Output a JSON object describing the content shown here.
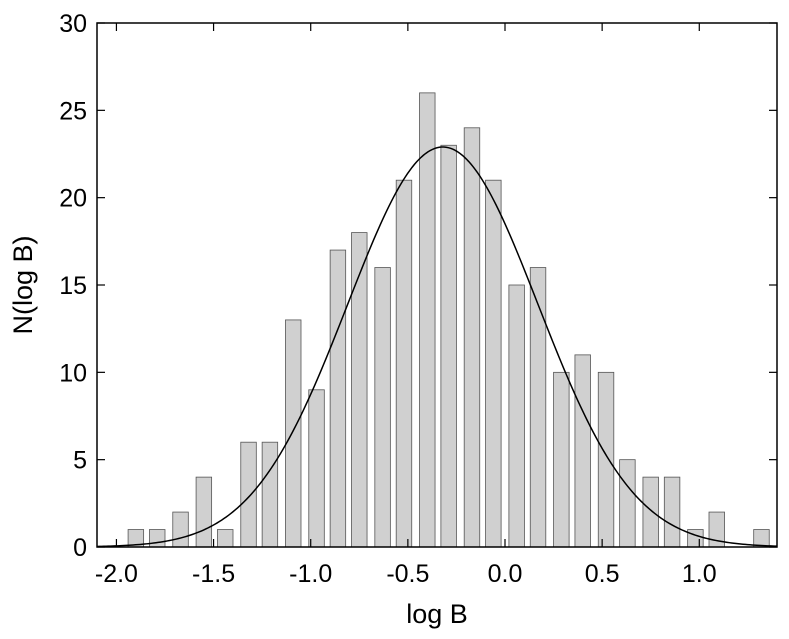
{
  "chart_data": {
    "type": "bar",
    "xlabel": "log B",
    "ylabel": "N(log B)",
    "xlim": [
      -2.1,
      1.4
    ],
    "ylim": [
      0,
      30
    ],
    "grid": false,
    "x_ticks": [
      -2.0,
      -1.5,
      -1.0,
      -0.5,
      0.0,
      0.5,
      1.0
    ],
    "x_tick_labels": [
      "-2.0",
      "-1.5",
      "-1.0",
      "-0.5",
      "0.0",
      "0.5",
      "1.0"
    ],
    "y_ticks": [
      0,
      5,
      10,
      15,
      20,
      25,
      30
    ],
    "y_tick_labels": [
      "0",
      "5",
      "10",
      "15",
      "20",
      "25",
      "30"
    ],
    "bin_width": 0.08,
    "bar_color": "#d0d0d0",
    "bars": [
      {
        "x": -1.9,
        "count": 1
      },
      {
        "x": -1.79,
        "count": 1
      },
      {
        "x": -1.67,
        "count": 2
      },
      {
        "x": -1.55,
        "count": 4
      },
      {
        "x": -1.44,
        "count": 1
      },
      {
        "x": -1.32,
        "count": 6
      },
      {
        "x": -1.21,
        "count": 6
      },
      {
        "x": -1.09,
        "count": 13
      },
      {
        "x": -0.97,
        "count": 9
      },
      {
        "x": -0.86,
        "count": 17
      },
      {
        "x": -0.75,
        "count": 18
      },
      {
        "x": -0.63,
        "count": 16
      },
      {
        "x": -0.52,
        "count": 21
      },
      {
        "x": -0.4,
        "count": 26
      },
      {
        "x": -0.29,
        "count": 23
      },
      {
        "x": -0.17,
        "count": 24
      },
      {
        "x": -0.06,
        "count": 21
      },
      {
        "x": 0.06,
        "count": 15
      },
      {
        "x": 0.17,
        "count": 16
      },
      {
        "x": 0.29,
        "count": 10
      },
      {
        "x": 0.4,
        "count": 11
      },
      {
        "x": 0.52,
        "count": 10
      },
      {
        "x": 0.63,
        "count": 5
      },
      {
        "x": 0.75,
        "count": 4
      },
      {
        "x": 0.86,
        "count": 4
      },
      {
        "x": 0.98,
        "count": 1
      },
      {
        "x": 1.09,
        "count": 2
      },
      {
        "x": 1.32,
        "count": 1
      }
    ],
    "fit_curve": {
      "type": "gaussian",
      "amplitude": 22.9,
      "mean": -0.32,
      "sigma": 0.49
    }
  }
}
